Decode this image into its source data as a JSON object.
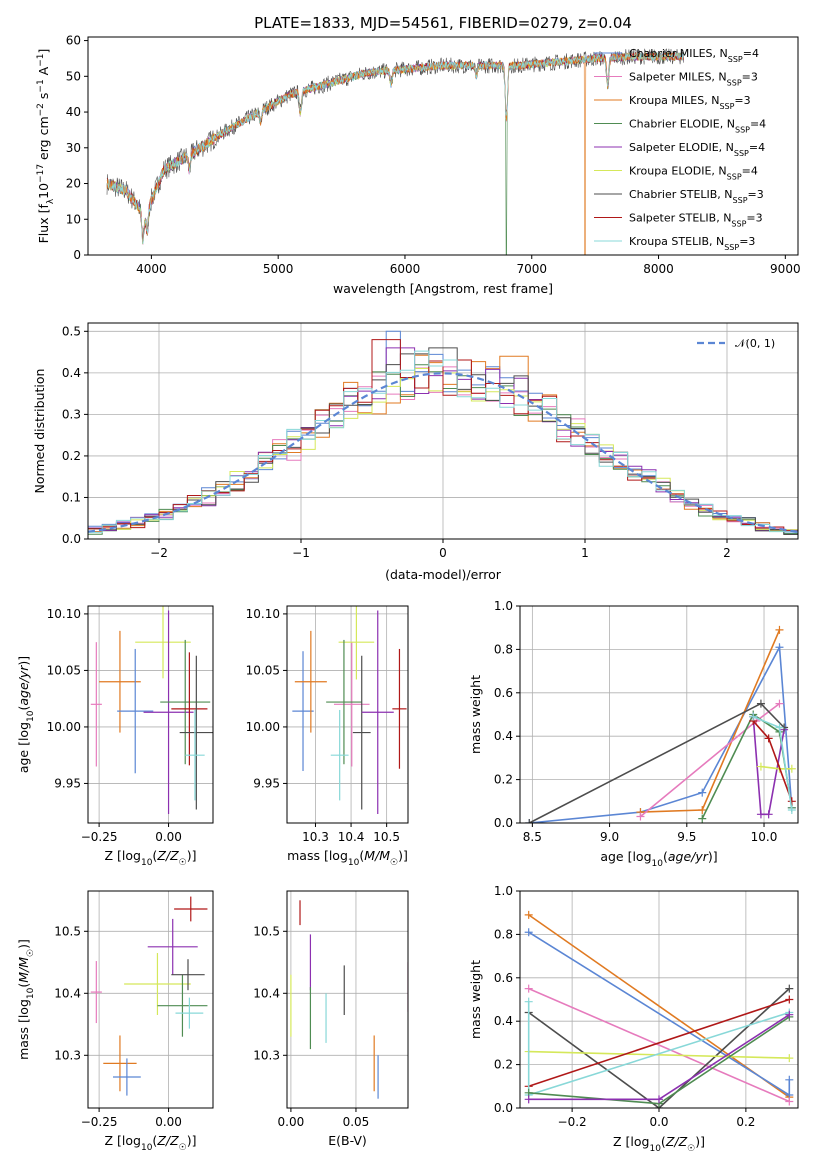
{
  "figure": {
    "title": "PLATE=1833, MJD=54561, FIBERID=0279, z=0.04"
  },
  "colors": {
    "Chabrier MILES": "#5b86d4",
    "Salpeter MILES": "#e67bbd",
    "Kroupa MILES": "#e07a22",
    "Chabrier ELODIE": "#4f8c52",
    "Salpeter ELODIE": "#8c30b0",
    "Kroupa ELODIE": "#d5e85a",
    "Chabrier STELIB": "#4d4d4d",
    "Salpeter STELIB": "#b01818",
    "Kroupa STELIB": "#88d8d8"
  },
  "chart_data": [
    {
      "id": "spectrum",
      "type": "line",
      "xlabel": "wavelength [Angstrom, rest frame]",
      "ylabel": "Flux [f_λ 10^-17 erg cm^-2 s^-1 A^-1]",
      "xlim": [
        3500,
        9100
      ],
      "ylim": [
        0,
        61
      ],
      "xticks": [
        4000,
        5000,
        6000,
        7000,
        8000,
        9000
      ],
      "yticks": [
        0,
        10,
        20,
        30,
        40,
        50,
        60
      ],
      "legend_position": "right",
      "series": [
        {
          "name": "Chabrier MILES",
          "nssp": "4"
        },
        {
          "name": "Salpeter MILES",
          "nssp": "3"
        },
        {
          "name": "Kroupa MILES",
          "nssp": "3"
        },
        {
          "name": "Chabrier ELODIE",
          "nssp": "4"
        },
        {
          "name": "Salpeter ELODIE",
          "nssp": "4"
        },
        {
          "name": "Kroupa ELODIE",
          "nssp": "4"
        },
        {
          "name": "Chabrier STELIB",
          "nssp": "3"
        },
        {
          "name": "Salpeter STELIB",
          "nssp": "3"
        },
        {
          "name": "Kroupa STELIB",
          "nssp": "3"
        }
      ],
      "continuum": [
        [
          3650,
          20
        ],
        [
          3800,
          18
        ],
        [
          3950,
          11
        ],
        [
          4100,
          24
        ],
        [
          4300,
          28
        ],
        [
          4600,
          35
        ],
        [
          4900,
          41
        ],
        [
          5100,
          45
        ],
        [
          5400,
          48
        ],
        [
          5700,
          51
        ],
        [
          6000,
          52
        ],
        [
          6300,
          53
        ],
        [
          6600,
          53
        ],
        [
          6900,
          53
        ],
        [
          7200,
          54
        ],
        [
          7500,
          55
        ],
        [
          7800,
          55.5
        ],
        [
          8200,
          55.5
        ]
      ],
      "features": [
        [
          3933,
          8
        ],
        [
          3968,
          6
        ],
        [
          4300,
          4
        ],
        [
          4861,
          3
        ],
        [
          5175,
          6
        ],
        [
          5890,
          4
        ],
        [
          6563,
          3
        ],
        [
          6800,
          15
        ],
        [
          7600,
          8
        ]
      ],
      "spikes_to_zero": [
        6800,
        7420
      ],
      "wavelength_range": [
        3650,
        8200
      ]
    },
    {
      "id": "residuals",
      "type": "step-histogram",
      "xlabel": "(data-model)/error",
      "ylabel": "Normed distribution",
      "xlim": [
        -2.5,
        2.5
      ],
      "ylim": [
        0,
        0.52
      ],
      "xticks": [
        -2,
        -1,
        0,
        1,
        2
      ],
      "yticks": [
        0.0,
        0.1,
        0.2,
        0.3,
        0.4,
        0.5
      ],
      "reference_curve": "𝒩(0, 1)",
      "bin_width": 0.1,
      "series_peaks": {
        "Chabrier MILES": [
          -0.35,
          0.5
        ],
        "Salpeter STELIB": [
          -0.4,
          0.48
        ],
        "Salpeter ELODIE": [
          -0.3,
          0.46
        ],
        "Chabrier STELIB": [
          0.0,
          0.46
        ],
        "Kroupa MILES": [
          0.5,
          0.44
        ]
      }
    },
    {
      "id": "age-vs-Z",
      "type": "errorbar",
      "xlabel": "Z [log10(Z/Z☉)]",
      "ylabel": "age [log10(age/yr)]",
      "xlim": [
        -0.29,
        0.16
      ],
      "ylim": [
        9.915,
        10.107
      ],
      "xticks": [
        -0.25,
        0.0
      ],
      "yticks": [
        9.95,
        10.0,
        10.05,
        10.1
      ],
      "points": [
        {
          "series": "Salpeter MILES",
          "x": -0.26,
          "xerr": 0.02,
          "y": 10.02,
          "yerr": 0.055
        },
        {
          "series": "Kroupa MILES",
          "x": -0.175,
          "xerr": 0.075,
          "y": 10.04,
          "yerr": 0.045
        },
        {
          "series": "Chabrier MILES",
          "x": -0.12,
          "xerr": 0.065,
          "y": 10.014,
          "yerr": 0.055
        },
        {
          "series": "Kroupa ELODIE",
          "x": -0.02,
          "xerr": 0.1,
          "y": 10.075,
          "yerr": 0.032
        },
        {
          "series": "Salpeter ELODIE",
          "x": 0.0,
          "xerr": 0.09,
          "y": 10.013,
          "yerr": 0.09
        },
        {
          "series": "Chabrier ELODIE",
          "x": 0.06,
          "xerr": 0.09,
          "y": 10.022,
          "yerr": 0.055
        },
        {
          "series": "Salpeter STELIB",
          "x": 0.075,
          "xerr": 0.065,
          "y": 10.016,
          "yerr": 0.05
        },
        {
          "series": "Chabrier STELIB",
          "x": 0.1,
          "xerr": 0.06,
          "y": 9.995,
          "yerr": 0.068
        },
        {
          "series": "Kroupa STELIB",
          "x": 0.095,
          "xerr": 0.035,
          "y": 9.975,
          "yerr": 0.04
        }
      ]
    },
    {
      "id": "age-vs-mass",
      "type": "errorbar",
      "xlabel": "mass [log10(M/M☉)]",
      "ylabel": "",
      "xlim": [
        10.22,
        10.56
      ],
      "ylim": [
        9.915,
        10.107
      ],
      "xticks": [
        10.3,
        10.4,
        10.5
      ],
      "yticks": [
        9.95,
        10.0,
        10.05,
        10.1
      ],
      "points": [
        {
          "series": "Chabrier MILES",
          "x": 10.265,
          "xerr": 0.03,
          "y": 10.014,
          "yerr": 0.053
        },
        {
          "series": "Kroupa MILES",
          "x": 10.287,
          "xerr": 0.045,
          "y": 10.04,
          "yerr": 0.045
        },
        {
          "series": "Salpeter MILES",
          "x": 10.402,
          "xerr": 0.05,
          "y": 10.02,
          "yerr": 0.055
        },
        {
          "series": "Kroupa ELODIE",
          "x": 10.415,
          "xerr": 0.05,
          "y": 10.075,
          "yerr": 0.033
        },
        {
          "series": "Chabrier ELODIE",
          "x": 10.38,
          "xerr": 0.05,
          "y": 10.022,
          "yerr": 0.055
        },
        {
          "series": "Chabrier STELIB",
          "x": 10.43,
          "xerr": 0.025,
          "y": 9.995,
          "yerr": 0.068
        },
        {
          "series": "Kroupa STELIB",
          "x": 10.368,
          "xerr": 0.025,
          "y": 9.975,
          "yerr": 0.04
        },
        {
          "series": "Salpeter ELODIE",
          "x": 10.475,
          "xerr": 0.045,
          "y": 10.013,
          "yerr": 0.09
        },
        {
          "series": "Salpeter STELIB",
          "x": 10.536,
          "xerr": 0.02,
          "y": 10.016,
          "yerr": 0.053
        }
      ]
    },
    {
      "id": "weight-vs-age",
      "type": "line",
      "xlabel": "age [log10(age/yr)]",
      "ylabel": "mass weight",
      "xlim": [
        8.42,
        10.22
      ],
      "ylim": [
        0,
        1
      ],
      "xticks": [
        8.5,
        9.0,
        9.5,
        10.0
      ],
      "yticks": [
        0.0,
        0.2,
        0.4,
        0.6,
        0.8,
        1.0
      ],
      "series": [
        {
          "name": "Chabrier MILES",
          "x": [
            8.48,
            9.2,
            9.6,
            10.1,
            10.18
          ],
          "y": [
            0.0,
            0.05,
            0.14,
            0.81,
            0.07
          ]
        },
        {
          "name": "Kroupa MILES",
          "x": [
            9.2,
            9.6,
            10.1
          ],
          "y": [
            0.05,
            0.06,
            0.89
          ]
        },
        {
          "name": "Salpeter MILES",
          "x": [
            9.2,
            9.95,
            10.1
          ],
          "y": [
            0.03,
            0.47,
            0.55
          ]
        },
        {
          "name": "Chabrier ELODIE",
          "x": [
            9.6,
            9.93,
            10.1,
            10.18
          ],
          "y": [
            0.02,
            0.5,
            0.42,
            0.07
          ]
        },
        {
          "name": "Salpeter ELODIE",
          "x": [
            9.93,
            9.98,
            10.03,
            10.13
          ],
          "y": [
            0.49,
            0.04,
            0.04,
            0.43
          ]
        },
        {
          "name": "Kroupa ELODIE",
          "x": [
            9.98,
            10.1,
            10.18
          ],
          "y": [
            0.26,
            0.25,
            0.25
          ]
        },
        {
          "name": "Chabrier STELIB",
          "x": [
            8.48,
            9.98,
            10.13
          ],
          "y": [
            0.0,
            0.55,
            0.44
          ]
        },
        {
          "name": "Salpeter STELIB",
          "x": [
            9.93,
            10.03,
            10.18
          ],
          "y": [
            0.47,
            0.39,
            0.1
          ]
        },
        {
          "name": "Kroupa STELIB",
          "x": [
            9.93,
            10.1,
            10.18
          ],
          "y": [
            0.49,
            0.44,
            0.06
          ]
        }
      ]
    },
    {
      "id": "mass-vs-Z",
      "type": "errorbar",
      "xlabel": "Z [log10(Z/Z☉)]",
      "ylabel": "mass [log10(M/M☉)]",
      "xlim": [
        -0.29,
        0.16
      ],
      "ylim": [
        10.215,
        10.565
      ],
      "xticks": [
        -0.25,
        0.0
      ],
      "yticks": [
        10.3,
        10.4,
        10.5
      ],
      "points": [
        {
          "series": "Salpeter MILES",
          "x": -0.26,
          "xerr": 0.02,
          "y": 10.402,
          "yerr": 0.05
        },
        {
          "series": "Kroupa MILES",
          "x": -0.175,
          "xerr": 0.06,
          "y": 10.287,
          "yerr": 0.045
        },
        {
          "series": "Chabrier MILES",
          "x": -0.15,
          "xerr": 0.05,
          "y": 10.265,
          "yerr": 0.03
        },
        {
          "series": "Kroupa ELODIE",
          "x": -0.04,
          "xerr": 0.12,
          "y": 10.415,
          "yerr": 0.05
        },
        {
          "series": "Salpeter ELODIE",
          "x": 0.015,
          "xerr": 0.09,
          "y": 10.475,
          "yerr": 0.045
        },
        {
          "series": "Chabrier ELODIE",
          "x": 0.05,
          "xerr": 0.09,
          "y": 10.38,
          "yerr": 0.05
        },
        {
          "series": "Chabrier STELIB",
          "x": 0.07,
          "xerr": 0.06,
          "y": 10.43,
          "yerr": 0.025
        },
        {
          "series": "Kroupa STELIB",
          "x": 0.075,
          "xerr": 0.05,
          "y": 10.368,
          "yerr": 0.025
        },
        {
          "series": "Salpeter STELIB",
          "x": 0.08,
          "xerr": 0.06,
          "y": 10.536,
          "yerr": 0.02
        }
      ]
    },
    {
      "id": "mass-vs-EBV",
      "type": "errorbar",
      "xlabel": "E(B-V)",
      "ylabel": "",
      "xlim": [
        -0.003,
        0.09
      ],
      "ylim": [
        10.215,
        10.565
      ],
      "xticks": [
        0.0,
        0.05
      ],
      "yticks": [
        10.3,
        10.4,
        10.5
      ],
      "points": [
        {
          "series": "Kroupa ELODIE",
          "x": 0.0,
          "y": 10.38,
          "yerr": 0.05
        },
        {
          "series": "Salpeter STELIB",
          "x": 0.007,
          "y": 10.53,
          "yerr": 0.02
        },
        {
          "series": "Salpeter ELODIE",
          "x": 0.015,
          "y": 10.45,
          "yerr": 0.045
        },
        {
          "series": "Chabrier ELODIE",
          "x": 0.015,
          "y": 10.36,
          "yerr": 0.05
        },
        {
          "series": "Kroupa STELIB",
          "x": 0.027,
          "y": 10.36,
          "yerr": 0.04
        },
        {
          "series": "Chabrier STELIB",
          "x": 0.041,
          "y": 10.405,
          "yerr": 0.04
        },
        {
          "series": "Kroupa MILES",
          "x": 0.064,
          "y": 10.287,
          "yerr": 0.045
        },
        {
          "series": "Chabrier MILES",
          "x": 0.067,
          "y": 10.265,
          "yerr": 0.035
        },
        {
          "series": "Salpeter MILES",
          "x": 0.09,
          "y": 10.41,
          "yerr": 0.04
        }
      ]
    },
    {
      "id": "weight-vs-Z",
      "type": "line",
      "xlabel": "Z [log10(Z/Z☉)]",
      "ylabel": "mass weight",
      "xlim": [
        -0.32,
        0.32
      ],
      "ylim": [
        0,
        1
      ],
      "xticks": [
        -0.2,
        0.0,
        0.2
      ],
      "yticks": [
        0.0,
        0.2,
        0.4,
        0.6,
        0.8,
        1.0
      ],
      "series": [
        {
          "name": "Kroupa MILES",
          "x": [
            -0.3,
            0.3
          ],
          "y": [
            0.89,
            0.05
          ]
        },
        {
          "name": "Chabrier MILES",
          "x": [
            -0.3,
            0.3,
            0.3
          ],
          "y": [
            0.81,
            0.06,
            0.13
          ]
        },
        {
          "name": "Salpeter MILES",
          "x": [
            -0.3,
            0.3
          ],
          "y": [
            0.55,
            0.03
          ]
        },
        {
          "name": "Chabrier STELIB",
          "x": [
            -0.3,
            0.0,
            0.3
          ],
          "y": [
            0.44,
            0.0,
            0.55
          ]
        },
        {
          "name": "Kroupa ELODIE",
          "x": [
            -0.3,
            0.3
          ],
          "y": [
            0.26,
            0.23
          ]
        },
        {
          "name": "Salpeter STELIB",
          "x": [
            -0.3,
            0.3
          ],
          "y": [
            0.1,
            0.5
          ]
        },
        {
          "name": "Kroupa STELIB",
          "x": [
            -0.3,
            -0.3,
            0.3
          ],
          "y": [
            0.49,
            0.06,
            0.44
          ]
        },
        {
          "name": "Chabrier ELODIE",
          "x": [
            -0.3,
            0.0,
            0.3
          ],
          "y": [
            0.07,
            0.02,
            0.42
          ]
        },
        {
          "name": "Salpeter ELODIE",
          "x": [
            -0.3,
            0.0,
            0.3
          ],
          "y": [
            0.04,
            0.04,
            0.43
          ]
        }
      ]
    }
  ]
}
